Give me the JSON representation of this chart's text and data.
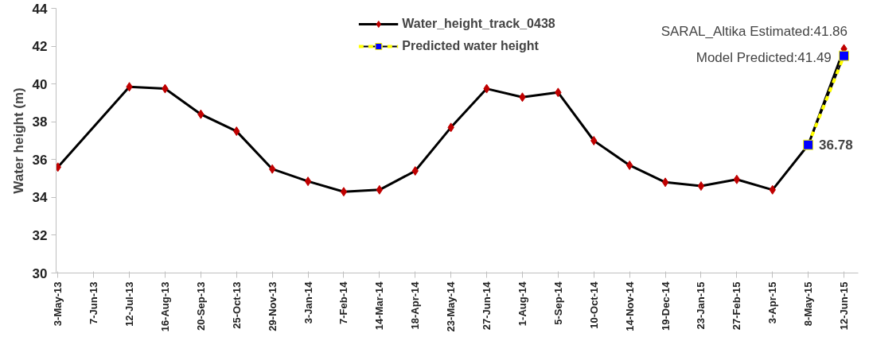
{
  "chart_data": {
    "type": "line",
    "ylabel": "Water height (m)",
    "categories": [
      "3-May-13",
      "7-Jun-13",
      "12-Jul-13",
      "16-Aug-13",
      "20-Sep-13",
      "25-Oct-13",
      "29-Nov-13",
      "3-Jan-14",
      "7-Feb-14",
      "14-Mar-14",
      "18-Apr-14",
      "23-May-14",
      "27-Jun-14",
      "1-Aug-14",
      "5-Sep-14",
      "10-Oct-14",
      "14-Nov-14",
      "19-Dec-14",
      "23-Jan-15",
      "27-Feb-15",
      "3-Apr-15",
      "8-May-15",
      "12-Jun-15"
    ],
    "series": [
      {
        "name": "Water_height_track_0438",
        "color": "#c00000",
        "marker": "diamond",
        "line_style": "solid",
        "values": [
          35.6,
          null,
          39.85,
          39.75,
          38.4,
          37.5,
          35.5,
          34.85,
          34.3,
          34.4,
          35.4,
          37.7,
          39.75,
          39.3,
          39.55,
          37.0,
          35.7,
          34.8,
          34.6,
          34.95,
          34.4,
          36.78,
          41.86
        ]
      },
      {
        "name": "Predicted water height",
        "color": "#0000ff",
        "marker": "square",
        "line_style": "dashed",
        "values": [
          null,
          null,
          null,
          null,
          null,
          null,
          null,
          null,
          null,
          null,
          null,
          null,
          null,
          null,
          null,
          null,
          null,
          null,
          null,
          null,
          null,
          36.78,
          41.49
        ]
      }
    ],
    "ylim": [
      30,
      44
    ],
    "yticks": [
      30,
      32,
      34,
      36,
      38,
      40,
      42,
      44
    ],
    "grid": false,
    "legend": "top",
    "annotations": [
      {
        "text": "SARAL_Altika Estimated:41.86",
        "x": "12-Jun-15",
        "y": 41.86
      },
      {
        "text": "Model Predicted:41.49",
        "x": "12-Jun-15",
        "y": 41.49
      },
      {
        "text": "36.78",
        "x": "8-May-15",
        "y": 36.78
      }
    ]
  }
}
